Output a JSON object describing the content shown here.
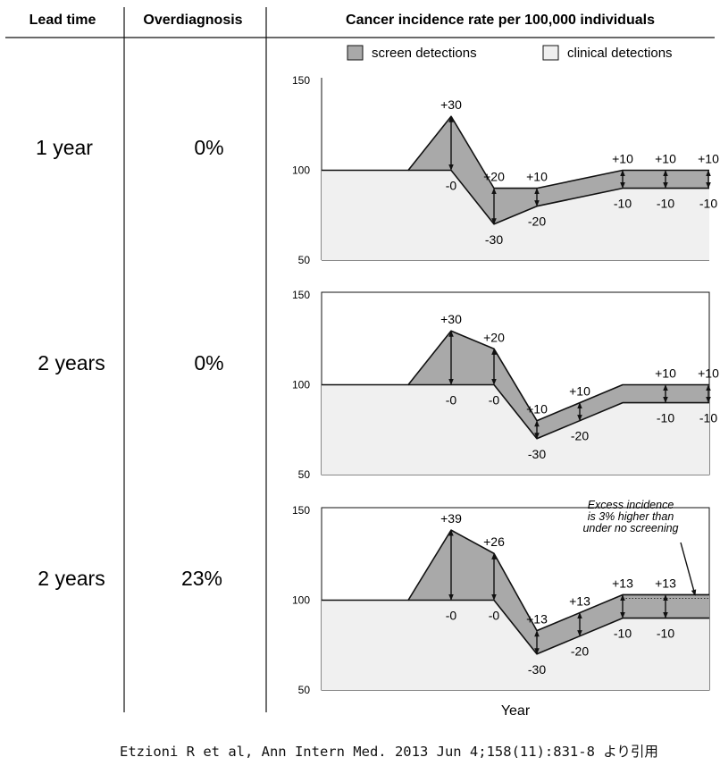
{
  "headers": {
    "lead_time": "Lead time",
    "overdiagnosis": "Overdiagnosis",
    "incidence": "Cancer incidence rate per 100,000 individuals"
  },
  "legend": {
    "screen": "screen detections",
    "clinical": "clinical detections"
  },
  "colors": {
    "screen": "#a9a9a9",
    "clinical": "#f0f0f0",
    "line": "#111111"
  },
  "rows": [
    {
      "lead_time": "1 year",
      "overdiagnosis": "0%"
    },
    {
      "lead_time": "2 years",
      "overdiagnosis": "0%"
    },
    {
      "lead_time": "2 years",
      "overdiagnosis": "23%"
    }
  ],
  "xlabel": "Year",
  "citation": "Etzioni R et al, Ann Intern Med. 2013 Jun 4;158(11):831-8 より引用",
  "chart_data": [
    {
      "type": "area",
      "title": "1 year",
      "ylim": [
        50,
        150
      ],
      "yticks": [
        "150",
        "100",
        "50"
      ],
      "total": [
        [
          0,
          100
        ],
        [
          2,
          100
        ],
        [
          3,
          130
        ],
        [
          4,
          90
        ],
        [
          5,
          90
        ],
        [
          7,
          100
        ],
        [
          8,
          100
        ],
        [
          9,
          100
        ]
      ],
      "clinical": [
        [
          0,
          100
        ],
        [
          2,
          100
        ],
        [
          3,
          100
        ],
        [
          4,
          70
        ],
        [
          5,
          80
        ],
        [
          7,
          90
        ],
        [
          8,
          90
        ],
        [
          9,
          90
        ]
      ],
      "arrows": [
        {
          "x": 3,
          "y1": 100,
          "y2": 130
        },
        {
          "x": 4,
          "y1": 70,
          "y2": 90
        },
        {
          "x": 5,
          "y1": 80,
          "y2": 90
        },
        {
          "x": 7,
          "y1": 90,
          "y2": 100
        },
        {
          "x": 8,
          "y1": 90,
          "y2": 100
        },
        {
          "x": 9,
          "y1": 90,
          "y2": 100
        }
      ],
      "labels": [
        {
          "x": 3,
          "y": 130,
          "text": "+30",
          "pos": "above"
        },
        {
          "x": 3,
          "y": 100,
          "text": "-0",
          "pos": "below"
        },
        {
          "x": 4,
          "y": 90,
          "text": "+20",
          "pos": "above"
        },
        {
          "x": 4,
          "y": 70,
          "text": "-30",
          "pos": "below"
        },
        {
          "x": 5,
          "y": 90,
          "text": "+10",
          "pos": "above"
        },
        {
          "x": 5,
          "y": 80,
          "text": "-20",
          "pos": "below"
        },
        {
          "x": 7,
          "y": 100,
          "text": "+10",
          "pos": "above"
        },
        {
          "x": 7,
          "y": 90,
          "text": "-10",
          "pos": "below"
        },
        {
          "x": 8,
          "y": 100,
          "text": "+10",
          "pos": "above"
        },
        {
          "x": 8,
          "y": 90,
          "text": "-10",
          "pos": "below"
        },
        {
          "x": 9,
          "y": 100,
          "text": "+10",
          "pos": "above"
        },
        {
          "x": 9,
          "y": 90,
          "text": "-10",
          "pos": "below"
        }
      ]
    },
    {
      "type": "area",
      "title": "2 years",
      "ylim": [
        50,
        150
      ],
      "yticks": [
        "150",
        "100",
        "50"
      ],
      "total": [
        [
          0,
          100
        ],
        [
          2,
          100
        ],
        [
          3,
          130
        ],
        [
          4,
          120
        ],
        [
          5,
          80
        ],
        [
          7,
          100
        ],
        [
          8,
          100
        ],
        [
          9,
          100
        ]
      ],
      "clinical": [
        [
          0,
          100
        ],
        [
          2,
          100
        ],
        [
          3,
          100
        ],
        [
          4,
          100
        ],
        [
          5,
          70
        ],
        [
          7,
          90
        ],
        [
          8,
          90
        ],
        [
          9,
          90
        ]
      ],
      "arrows": [
        {
          "x": 3,
          "y1": 100,
          "y2": 130
        },
        {
          "x": 4,
          "y1": 100,
          "y2": 120
        },
        {
          "x": 5,
          "y1": 70,
          "y2": 80
        },
        {
          "x": 6,
          "y1": 80,
          "y2": 90
        },
        {
          "x": 8,
          "y1": 90,
          "y2": 100
        },
        {
          "x": 9,
          "y1": 90,
          "y2": 100
        }
      ],
      "labels": [
        {
          "x": 3,
          "y": 130,
          "text": "+30",
          "pos": "above"
        },
        {
          "x": 3,
          "y": 100,
          "text": "-0",
          "pos": "below"
        },
        {
          "x": 4,
          "y": 120,
          "text": "+20",
          "pos": "above"
        },
        {
          "x": 4,
          "y": 100,
          "text": "-0",
          "pos": "below"
        },
        {
          "x": 5,
          "y": 80,
          "text": "+10",
          "pos": "above"
        },
        {
          "x": 5,
          "y": 70,
          "text": "-30",
          "pos": "below"
        },
        {
          "x": 6,
          "y": 90,
          "text": "+10",
          "pos": "above"
        },
        {
          "x": 6,
          "y": 80,
          "text": "-20",
          "pos": "below"
        },
        {
          "x": 8,
          "y": 100,
          "text": "+10",
          "pos": "above"
        },
        {
          "x": 8,
          "y": 90,
          "text": "-10",
          "pos": "below"
        },
        {
          "x": 9,
          "y": 100,
          "text": "+10",
          "pos": "above"
        },
        {
          "x": 9,
          "y": 90,
          "text": "-10",
          "pos": "below"
        }
      ]
    },
    {
      "type": "area",
      "title": "2 years",
      "ylim": [
        50,
        150
      ],
      "yticks": [
        "150",
        "100",
        "50"
      ],
      "total": [
        [
          0,
          100
        ],
        [
          2,
          100
        ],
        [
          3,
          139
        ],
        [
          4,
          126
        ],
        [
          5,
          83
        ],
        [
          7,
          103
        ],
        [
          8,
          103
        ],
        [
          9,
          103
        ]
      ],
      "clinical": [
        [
          0,
          100
        ],
        [
          2,
          100
        ],
        [
          3,
          100
        ],
        [
          4,
          100
        ],
        [
          5,
          70
        ],
        [
          7,
          90
        ],
        [
          8,
          90
        ],
        [
          9,
          90
        ]
      ],
      "reference_line": 100,
      "arrows": [
        {
          "x": 3,
          "y1": 100,
          "y2": 139
        },
        {
          "x": 4,
          "y1": 100,
          "y2": 126
        },
        {
          "x": 5,
          "y1": 70,
          "y2": 83
        },
        {
          "x": 6,
          "y1": 80,
          "y2": 93
        },
        {
          "x": 7,
          "y1": 90,
          "y2": 103
        },
        {
          "x": 8,
          "y1": 90,
          "y2": 103
        }
      ],
      "labels": [
        {
          "x": 3,
          "y": 139,
          "text": "+39",
          "pos": "above"
        },
        {
          "x": 3,
          "y": 100,
          "text": "-0",
          "pos": "below"
        },
        {
          "x": 4,
          "y": 126,
          "text": "+26",
          "pos": "above"
        },
        {
          "x": 4,
          "y": 100,
          "text": "-0",
          "pos": "below"
        },
        {
          "x": 5,
          "y": 83,
          "text": "+13",
          "pos": "above"
        },
        {
          "x": 5,
          "y": 70,
          "text": "-30",
          "pos": "below"
        },
        {
          "x": 6,
          "y": 93,
          "text": "+13",
          "pos": "above"
        },
        {
          "x": 6,
          "y": 80,
          "text": "-20",
          "pos": "below"
        },
        {
          "x": 7,
          "y": 103,
          "text": "+13",
          "pos": "above"
        },
        {
          "x": 7,
          "y": 90,
          "text": "-10",
          "pos": "below"
        },
        {
          "x": 8,
          "y": 103,
          "text": "+13",
          "pos": "above"
        },
        {
          "x": 8,
          "y": 90,
          "text": "-10",
          "pos": "below"
        }
      ],
      "annotation": [
        "Excess incidence",
        "is 3% higher than",
        "under no screening"
      ]
    }
  ]
}
